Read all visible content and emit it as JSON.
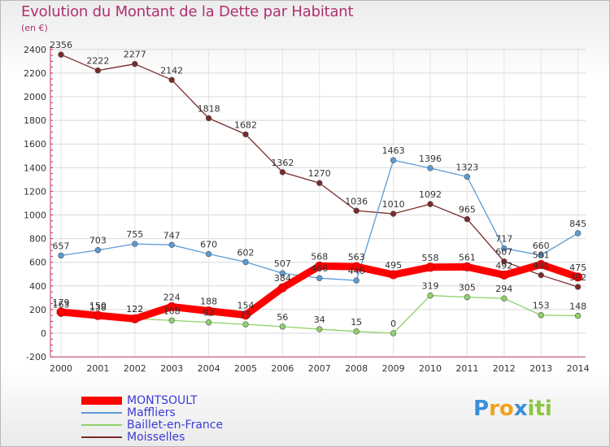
{
  "title": "Evolution du Montant de la Dette par Habitant",
  "subtitle": "(en €)",
  "chart_data": {
    "type": "line",
    "title": "Evolution du Montant de la Dette par Habitant",
    "ylabel": "(en €)",
    "ylim": [
      -200,
      2400
    ],
    "yticks": [
      -200,
      0,
      200,
      400,
      600,
      800,
      1000,
      1200,
      1400,
      1600,
      1800,
      2000,
      2200,
      2400
    ],
    "x": [
      "2000",
      "2001",
      "2002",
      "2003",
      "2004",
      "2005",
      "2006",
      "2007",
      "2008",
      "2009",
      "2010",
      "2011",
      "2012",
      "2013",
      "2014"
    ],
    "grid": true,
    "legend_position": "bottom-left",
    "series": [
      {
        "name": "MONTSOULT",
        "color": "#ff0000",
        "values": [
          179,
          150,
          122,
          224,
          188,
          154,
          384,
          568,
          563,
          495,
          558,
          561,
          492,
          581,
          475
        ]
      },
      {
        "name": "Maffliers",
        "color": "#5a9bd4",
        "values": [
          657,
          703,
          755,
          747,
          670,
          602,
          507,
          466,
          446,
          1463,
          1396,
          1323,
          717,
          660,
          845
        ]
      },
      {
        "name": "Baillet-en-France",
        "color": "#8fd16a",
        "values": [
          163,
          138,
          122,
          108,
          92,
          75,
          56,
          34,
          15,
          0,
          319,
          305,
          294,
          153,
          148
        ]
      },
      {
        "name": "Moisselles",
        "color": "#7a2a2a",
        "values": [
          2356,
          2222,
          2277,
          2142,
          1818,
          1682,
          1362,
          1270,
          1036,
          1010,
          1092,
          965,
          607,
          491,
          392
        ]
      }
    ]
  },
  "logo": {
    "letters": [
      "P",
      "r",
      "o",
      "x",
      "i",
      "t",
      "i"
    ],
    "colors": [
      "#3a8fd8",
      "#f2a01e",
      "#f2a01e",
      "#3a8fd8",
      "#8cc63f",
      "#8cc63f",
      "#8cc63f"
    ]
  }
}
